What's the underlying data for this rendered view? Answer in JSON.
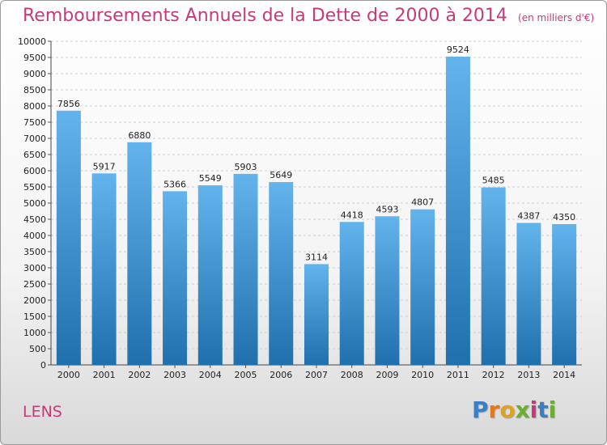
{
  "header": {
    "title": "Remboursements Annuels de la Dette de 2000 à 2014",
    "unit": "(en milliers d'€)"
  },
  "footer": {
    "city": "LENS",
    "logo": "Proxiti"
  },
  "colors": {
    "title": "#c8397a",
    "bar_top": "#63b3ec",
    "bar_bottom": "#1f70ad"
  },
  "chart_data": {
    "type": "bar",
    "title": "Remboursements Annuels de la Dette de 2000 à 2014",
    "subtitle": "(en milliers d'€)",
    "xlabel": "",
    "ylabel": "",
    "categories": [
      "2000",
      "2001",
      "2002",
      "2003",
      "2004",
      "2005",
      "2006",
      "2007",
      "2008",
      "2009",
      "2010",
      "2011",
      "2012",
      "2013",
      "2014"
    ],
    "values": [
      7856,
      5917,
      6880,
      5366,
      5549,
      5903,
      5649,
      3114,
      4418,
      4593,
      4807,
      9524,
      5485,
      4387,
      4350
    ],
    "ylim": [
      0,
      10000
    ],
    "ytick_step": 500,
    "grid": true,
    "data_labels": true
  }
}
